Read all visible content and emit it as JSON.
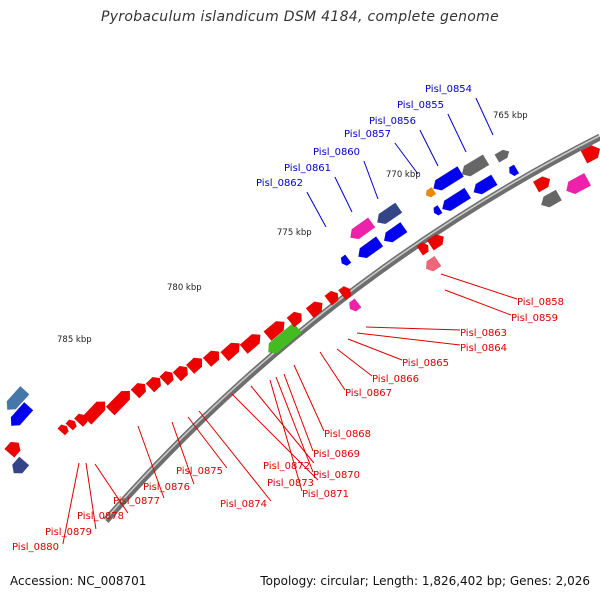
{
  "title": "Pyrobaculum islandicum DSM 4184, complete genome",
  "footer": {
    "accession": "Accession: NC_008701",
    "summary": "Topology: circular; Length: 1,826,402 bp; Genes: 2,026"
  },
  "colors": {
    "backbone": "#777777",
    "tick": "#1a7a1a",
    "label_top": "#0000cc",
    "label_bottom": "#dd0000",
    "scale_text": "#222222",
    "cds_red": "#ee0000",
    "cds_blue": "#0000ee",
    "gray": "#666666",
    "pink": "#ee22aa",
    "navy": "#334488",
    "green": "#44bb22",
    "orange": "#ee8800"
  },
  "scale_labels": [
    "765 kbp",
    "770 kbp",
    "775 kbp",
    "780 kbp",
    "785 kbp"
  ],
  "gene_labels_top": [
    "Pisl_0854",
    "Pisl_0855",
    "Pisl_0856",
    "Pisl_0857",
    "Pisl_0860",
    "Pisl_0861",
    "Pisl_0862"
  ],
  "gene_labels_bottom": [
    "Pisl_0858",
    "Pisl_0859",
    "Pisl_0863",
    "Pisl_0864",
    "Pisl_0865",
    "Pisl_0866",
    "Pisl_0867",
    "Pisl_0868",
    "Pisl_0869",
    "Pisl_0870",
    "Pisl_0871",
    "Pisl_0872",
    "Pisl_0873",
    "Pisl_0874",
    "Pisl_0875",
    "Pisl_0876",
    "Pisl_0877",
    "Pisl_0878",
    "Pisl_0879",
    "Pisl_0880"
  ]
}
